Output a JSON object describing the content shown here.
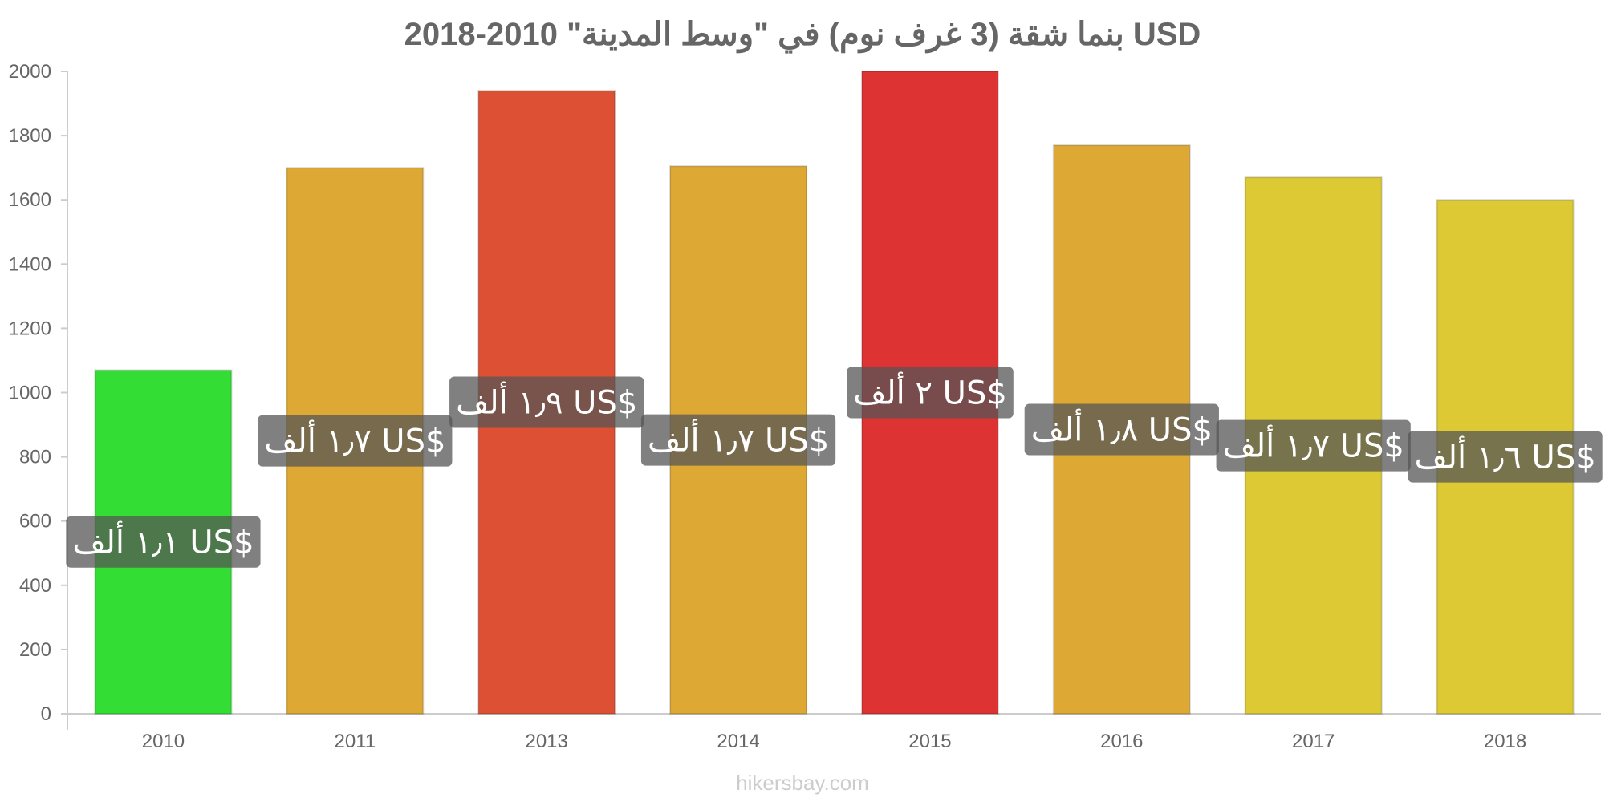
{
  "chart_data": {
    "type": "bar",
    "title": "بنما شقة (3 غرف نوم) في \"وسط المدينة\" 2010-2018 USD",
    "categories": [
      "2010",
      "2011",
      "2013",
      "2014",
      "2015",
      "2016",
      "2017",
      "2018"
    ],
    "values": [
      1070,
      1700,
      1940,
      1705,
      2000,
      1770,
      1670,
      1600
    ],
    "value_labels": [
      "١٫١ ألف US$",
      "١٫٧ ألف US$",
      "١٫٩ ألف US$",
      "١٫٧ ألف US$",
      "٢ ألف US$",
      "١٫٨ ألف US$",
      "١٫٧ ألف US$",
      "١٫٦ ألف US$"
    ],
    "colors": [
      "#33dd33",
      "#dda833",
      "#dd5033",
      "#dda833",
      "#dd3333",
      "#dda833",
      "#dcc933",
      "#dcc933"
    ],
    "ylim": [
      0,
      2000
    ],
    "yticks": [
      0,
      200,
      400,
      600,
      800,
      1000,
      1200,
      1400,
      1600,
      1800,
      2000
    ],
    "xlabel": "",
    "ylabel": "",
    "grid": false,
    "legend": "none"
  },
  "watermark": "hikersbay.com",
  "label_box_color": "#555555"
}
